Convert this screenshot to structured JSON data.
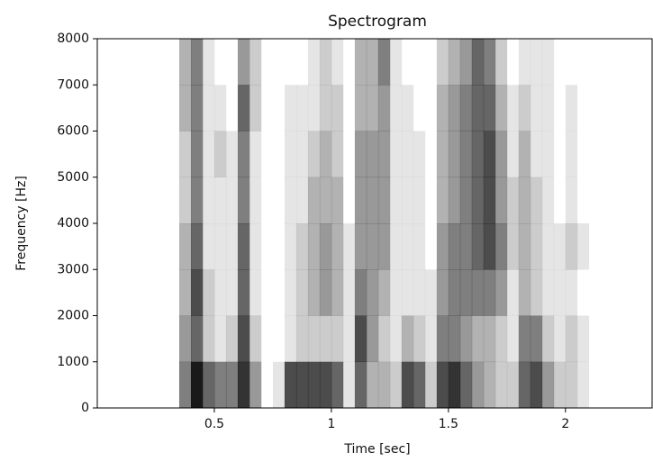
{
  "chart_data": {
    "type": "heatmap",
    "title": "Spectrogram",
    "x_label": "Time [sec]",
    "y_label": "Frequency [Hz]",
    "color": "#000000",
    "xlim": [
      0,
      2.37
    ],
    "ylim": [
      0,
      8000
    ],
    "xticks": [
      0.5,
      1.0,
      1.5,
      2.0
    ],
    "yticks": [
      0,
      1000,
      2000,
      3000,
      4000,
      5000,
      6000,
      7000,
      8000
    ],
    "bins": [
      0.35,
      0.4,
      0.45,
      0.5,
      0.55,
      0.6,
      0.65,
      0.7,
      0.75,
      0.8,
      0.85,
      0.9,
      0.95,
      1.0,
      1.05,
      1.1,
      1.15,
      1.2,
      1.25,
      1.3,
      1.35,
      1.4,
      1.45,
      1.5,
      1.55,
      1.6,
      1.65,
      1.7,
      1.75,
      1.8,
      1.85,
      1.9,
      1.95,
      2.0,
      2.05,
      2.1
    ],
    "ybins": [
      0,
      1000,
      2000,
      3000,
      4000,
      5000,
      6000,
      7000,
      8000
    ],
    "z": [
      [
        0.5,
        0.4,
        0.3,
        0.3,
        0.2,
        0.2,
        0.3,
        0.3
      ],
      [
        0.9,
        0.6,
        0.7,
        0.6,
        0.5,
        0.5,
        0.5,
        0.5
      ],
      [
        0.6,
        0.2,
        0.2,
        0.1,
        0.1,
        0.1,
        0.1,
        0.1
      ],
      [
        0.5,
        0.1,
        0.1,
        0.1,
        0.1,
        0.2,
        0.1,
        0
      ],
      [
        0.5,
        0.2,
        0.1,
        0.1,
        0.1,
        0.1,
        0,
        0
      ],
      [
        0.8,
        0.7,
        0.6,
        0.6,
        0.5,
        0.5,
        0.6,
        0.4
      ],
      [
        0.4,
        0.2,
        0.1,
        0.1,
        0.1,
        0.1,
        0.2,
        0.2
      ],
      [
        0,
        0,
        0,
        0,
        0,
        0,
        0,
        0
      ],
      [
        0.1,
        0,
        0,
        0,
        0,
        0,
        0,
        0
      ],
      [
        0.7,
        0.1,
        0.1,
        0.1,
        0.1,
        0.1,
        0.1,
        0
      ],
      [
        0.7,
        0.2,
        0.2,
        0.2,
        0.1,
        0.1,
        0.1,
        0
      ],
      [
        0.7,
        0.2,
        0.3,
        0.3,
        0.3,
        0.2,
        0.1,
        0.1
      ],
      [
        0.7,
        0.2,
        0.4,
        0.4,
        0.3,
        0.3,
        0.2,
        0.2
      ],
      [
        0.6,
        0.2,
        0.3,
        0.3,
        0.3,
        0.2,
        0.2,
        0.1
      ],
      [
        0.1,
        0.1,
        0.1,
        0.1,
        0,
        0,
        0,
        0
      ],
      [
        0.6,
        0.7,
        0.5,
        0.4,
        0.4,
        0.4,
        0.3,
        0.3
      ],
      [
        0.3,
        0.4,
        0.4,
        0.4,
        0.4,
        0.4,
        0.3,
        0.3
      ],
      [
        0.3,
        0.2,
        0.3,
        0.4,
        0.4,
        0.4,
        0.4,
        0.5
      ],
      [
        0.2,
        0.1,
        0.1,
        0.1,
        0.1,
        0.1,
        0.1,
        0.1
      ],
      [
        0.7,
        0.3,
        0.1,
        0.1,
        0.1,
        0.1,
        0.1,
        0
      ],
      [
        0.6,
        0.2,
        0.1,
        0.1,
        0.1,
        0.1,
        0,
        0
      ],
      [
        0.2,
        0.1,
        0.1,
        0,
        0,
        0,
        0,
        0
      ],
      [
        0.7,
        0.5,
        0.4,
        0.4,
        0.3,
        0.3,
        0.3,
        0.2
      ],
      [
        0.8,
        0.5,
        0.5,
        0.5,
        0.4,
        0.4,
        0.4,
        0.3
      ],
      [
        0.6,
        0.4,
        0.5,
        0.5,
        0.5,
        0.5,
        0.5,
        0.4
      ],
      [
        0.4,
        0.3,
        0.5,
        0.6,
        0.6,
        0.6,
        0.6,
        0.6
      ],
      [
        0.3,
        0.3,
        0.5,
        0.7,
        0.7,
        0.7,
        0.6,
        0.5
      ],
      [
        0.2,
        0.2,
        0.4,
        0.5,
        0.4,
        0.4,
        0.3,
        0.2
      ],
      [
        0.2,
        0.1,
        0.1,
        0.2,
        0.2,
        0.1,
        0.1,
        0
      ],
      [
        0.6,
        0.5,
        0.3,
        0.3,
        0.3,
        0.3,
        0.2,
        0.1
      ],
      [
        0.7,
        0.5,
        0.2,
        0.2,
        0.2,
        0.1,
        0.1,
        0.1
      ],
      [
        0.4,
        0.2,
        0.1,
        0.1,
        0.1,
        0.1,
        0.1,
        0.1
      ],
      [
        0.2,
        0.1,
        0.1,
        0.1,
        0,
        0,
        0,
        0
      ],
      [
        0.2,
        0.2,
        0.1,
        0.2,
        0.1,
        0.1,
        0.1,
        0
      ],
      [
        0.1,
        0.1,
        0,
        0.1,
        0,
        0,
        0,
        0
      ]
    ]
  }
}
